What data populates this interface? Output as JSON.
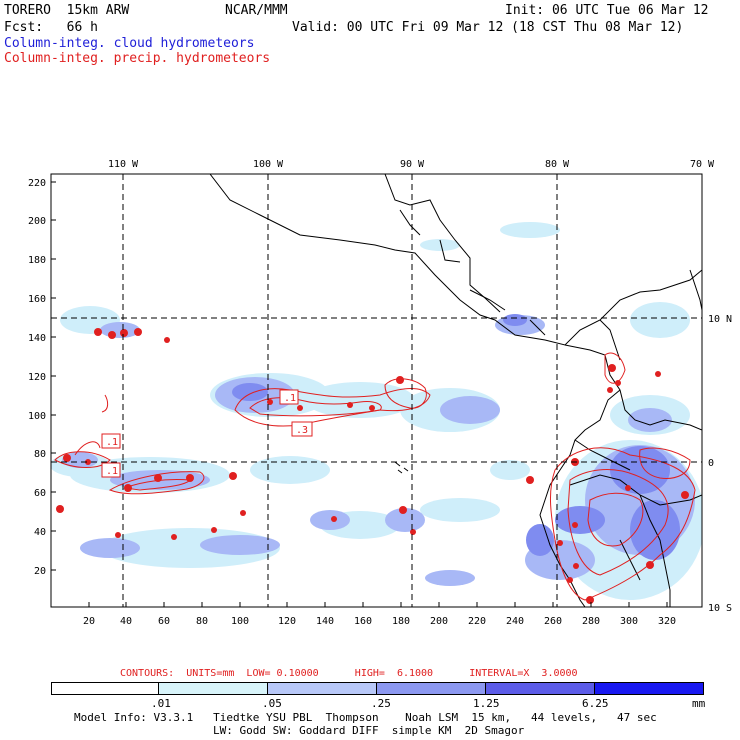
{
  "header": {
    "model": "TORERO  15km ARW",
    "org": "NCAR/MMM",
    "init": "Init: 06 UTC Tue 06 Mar 12",
    "fcst": "Fcst:   66 h",
    "valid": "Valid: 00 UTC Fri 09 Mar 12 (18 CST Thu 08 Mar 12)",
    "field1": "Column-integ. cloud hydrometeors",
    "field2": "Column-integ. precip. hydrometeors"
  },
  "axes": {
    "top_lon_labels": [
      "110 W",
      "100 W",
      "90 W",
      "80 W",
      "70 W"
    ],
    "right_lat_labels": [
      "10 N",
      "0",
      "10 S"
    ],
    "left_ticks": [
      "220",
      "200",
      "180",
      "160",
      "140",
      "120",
      "100",
      "80",
      "60",
      "40",
      "20"
    ],
    "bottom_ticks": [
      "20",
      "40",
      "60",
      "80",
      "100",
      "120",
      "140",
      "160",
      "180",
      "200",
      "220",
      "240",
      "260",
      "280",
      "300",
      "320"
    ]
  },
  "contour_labels": [
    ".1",
    ".1",
    ".1",
    ".3"
  ],
  "contours_info": {
    "text": "CONTOURS:  UNITS=mm  LOW= 0.10000      HIGH=  6.1000      INTERVAL=X  3.0000"
  },
  "colorbar": {
    "labels": [
      ".01",
      ".05",
      ".25",
      "1.25",
      "6.25"
    ],
    "unit": "mm",
    "colors": [
      "#ffffff",
      "#d8f4fa",
      "#b8c8f8",
      "#8c98f0",
      "#6060e8",
      "#3838e0",
      "#1010ff"
    ]
  },
  "model_info": {
    "line1": "Model Info: V3.3.1   Tiedtke YSU PBL  Thompson    Noah LSM  15 km,   44 levels,   47 sec",
    "line2": "LW: Godd SW: Goddard DIFF  simple KM  2D Smagor"
  },
  "colors": {
    "cloud_light": "#cfeefa",
    "cloud_mid": "#a8b8f6",
    "cloud_dark": "#7f8cf0",
    "precip": "#e02020"
  }
}
